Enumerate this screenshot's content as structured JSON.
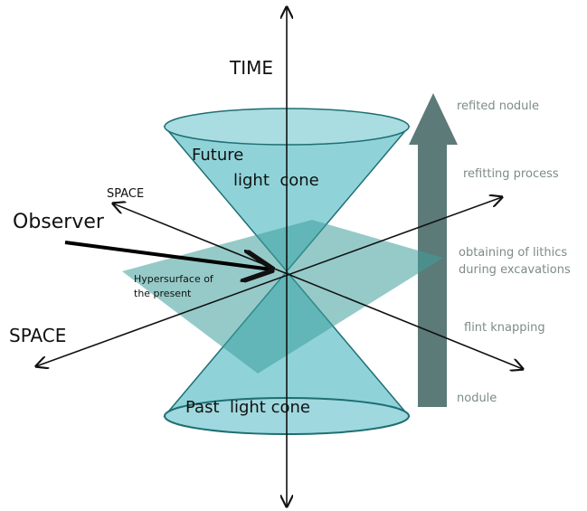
{
  "axes": {
    "time": "TIME",
    "space_back": "SPACE",
    "space_front": "SPACE"
  },
  "cones": {
    "future_line1": "Future",
    "future_line2": "light  cone",
    "past": "Past  light cone"
  },
  "observer": "Observer",
  "hypersurface": {
    "line1": "Hypersurface of",
    "line2": "the present"
  },
  "process": [
    "refited nodule",
    "refitting process",
    "obtaining of lithics",
    "during excavations",
    "flint knapping",
    "nodule"
  ]
}
